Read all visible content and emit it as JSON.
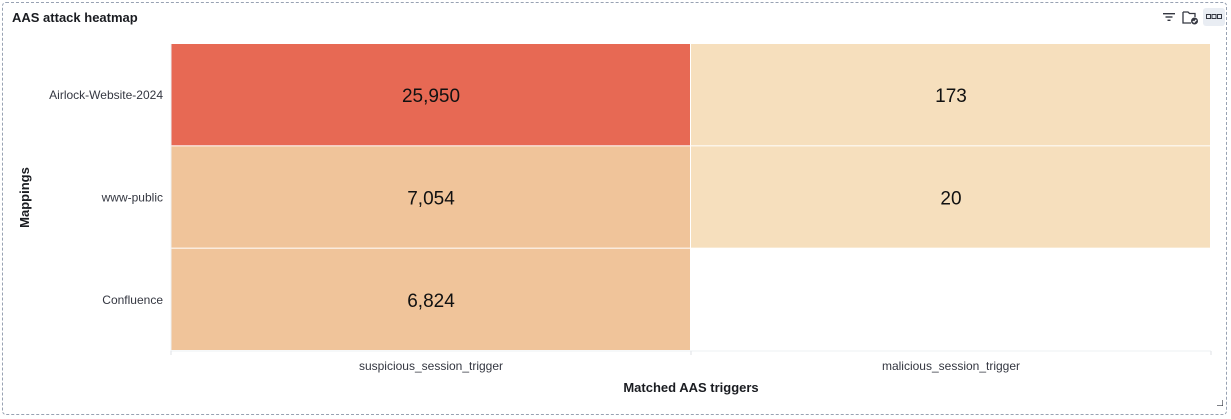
{
  "panel": {
    "title": "AAS attack heatmap",
    "icons": [
      "filter-icon",
      "folder-check-icon",
      "more-options-icon"
    ]
  },
  "chart_data": {
    "type": "heatmap",
    "title": "AAS attack heatmap",
    "xlabel": "Matched AAS triggers",
    "ylabel": "Mappings",
    "x_categories": [
      "suspicious_session_trigger",
      "malicious_session_trigger"
    ],
    "y_categories": [
      "Airlock-Website-2024",
      "www-public",
      "Confluence"
    ],
    "values": [
      [
        25950,
        173
      ],
      [
        7054,
        20
      ],
      [
        6824,
        null
      ]
    ],
    "value_labels": [
      [
        "25,950",
        "173"
      ],
      [
        "7,054",
        "20"
      ],
      [
        "6,824",
        ""
      ]
    ],
    "colors": {
      "high": "#e76954",
      "mid": "#f0c49a",
      "low": "#f6dfbd",
      "empty": "#ffffff"
    },
    "grid": false,
    "legend": "none"
  }
}
